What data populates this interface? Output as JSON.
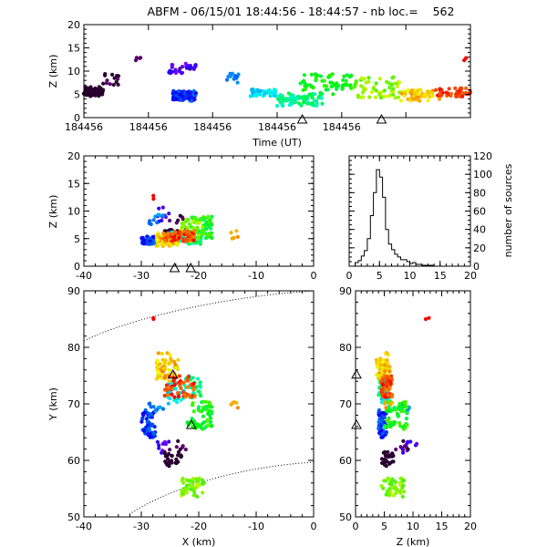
{
  "title": "ABFM - 06/15/01 18:44:56 - 18:44:57 - nb loc.=    562",
  "chart_data": [
    {
      "id": "time-height",
      "type": "scatter",
      "xlabel": "Time (UT)",
      "ylabel": "Z (km)",
      "xlim": [
        0,
        1
      ],
      "ylim": [
        0,
        20
      ],
      "yticks": [
        0,
        5,
        10,
        15,
        20
      ],
      "xtick_positions": [
        0,
        0.167,
        0.333,
        0.5,
        0.667,
        0.833,
        1.0
      ],
      "xtick_labels": [
        "184456",
        "184456",
        "184456",
        "184456",
        "184456",
        "",
        ""
      ],
      "stations_x": [
        0.565,
        0.77
      ],
      "color_scale": "time order, purple to red",
      "clusters": [
        {
          "t": [
            0.0,
            0.05
          ],
          "z": [
            4.6,
            6.6
          ],
          "n": 70,
          "ord": [
            0.0,
            0.05
          ]
        },
        {
          "t": [
            0.04,
            0.09
          ],
          "z": [
            7.0,
            9.5
          ],
          "n": 14,
          "ord": [
            0.04,
            0.09
          ]
        },
        {
          "t": [
            0.13,
            0.15
          ],
          "z": [
            12.2,
            13.0
          ],
          "n": 4,
          "ord": [
            0.14,
            0.15
          ]
        },
        {
          "t": [
            0.22,
            0.29
          ],
          "z": [
            9.5,
            11.8
          ],
          "n": 30,
          "ord": [
            0.15,
            0.25
          ]
        },
        {
          "t": [
            0.23,
            0.29
          ],
          "z": [
            3.6,
            5.8
          ],
          "n": 75,
          "ord": [
            0.24,
            0.36
          ]
        },
        {
          "t": [
            0.37,
            0.4
          ],
          "z": [
            7.5,
            9.5
          ],
          "n": 12,
          "ord": [
            0.33,
            0.38
          ]
        },
        {
          "t": [
            0.43,
            0.5
          ],
          "z": [
            4.6,
            6.2
          ],
          "n": 45,
          "ord": [
            0.4,
            0.48
          ]
        },
        {
          "t": [
            0.5,
            0.62
          ],
          "z": [
            2.5,
            5.2
          ],
          "n": 70,
          "ord": [
            0.47,
            0.6
          ]
        },
        {
          "t": [
            0.56,
            0.7
          ],
          "z": [
            5.0,
            9.5
          ],
          "n": 60,
          "ord": [
            0.58,
            0.68
          ]
        },
        {
          "t": [
            0.7,
            0.82
          ],
          "z": [
            4.2,
            8.8
          ],
          "n": 60,
          "ord": [
            0.68,
            0.8
          ]
        },
        {
          "t": [
            0.82,
            0.92
          ],
          "z": [
            3.6,
            6.0
          ],
          "n": 55,
          "ord": [
            0.8,
            0.9
          ]
        },
        {
          "t": [
            0.91,
            1.0
          ],
          "z": [
            4.5,
            6.4
          ],
          "n": 45,
          "ord": [
            0.92,
            1.0
          ]
        },
        {
          "t": [
            0.97,
            0.99
          ],
          "z": [
            12.2,
            13.0
          ],
          "n": 2,
          "ord": [
            1.0,
            1.0
          ]
        }
      ]
    },
    {
      "id": "x-height",
      "type": "scatter",
      "xlabel": "",
      "ylabel": "Z (km)",
      "xlim": [
        -40,
        0
      ],
      "ylim": [
        0,
        20
      ],
      "xticks": [
        -40,
        -30,
        -20,
        -10,
        0
      ],
      "yticks": [
        0,
        5,
        10,
        15,
        20
      ],
      "stations_x": [
        -24.2,
        -21.4
      ]
    },
    {
      "id": "height-histogram",
      "type": "bar",
      "xlabel": "",
      "ylabel": "number of sources",
      "xlim": [
        0,
        20
      ],
      "ylim": [
        0,
        120
      ],
      "xticks": [
        0,
        5,
        10,
        15,
        20
      ],
      "yticks": [
        0,
        20,
        40,
        60,
        80,
        100,
        120
      ],
      "bin_edges": [
        1.0,
        1.5,
        2.0,
        2.5,
        3.0,
        3.5,
        4.0,
        4.5,
        5.0,
        5.5,
        6.0,
        6.5,
        7.0,
        7.5,
        8.0,
        8.5,
        9.0,
        9.5,
        10.0,
        10.5,
        11.0,
        11.5,
        12.0,
        12.5,
        13.0,
        13.5,
        14.0
      ],
      "values": [
        4,
        6,
        11,
        17,
        30,
        55,
        80,
        105,
        97,
        75,
        40,
        24,
        18,
        13,
        10,
        7,
        7,
        5,
        3,
        4,
        2,
        2,
        1,
        1,
        1,
        1
      ]
    },
    {
      "id": "plan-view",
      "type": "scatter",
      "xlabel": "X (km)",
      "ylabel": "Y (km)",
      "xlim": [
        -40,
        0
      ],
      "ylim": [
        50,
        90
      ],
      "xticks": [
        -40,
        -30,
        -20,
        -10,
        0
      ],
      "yticks": [
        50,
        60,
        70,
        80,
        90
      ],
      "stations": [
        [
          -24.5,
          75.2
        ],
        [
          -21.3,
          66.3
        ]
      ],
      "clusters": [
        {
          "x": [
            -30,
            -27.5
          ],
          "y": [
            64,
            69
          ],
          "z": [
            4.0,
            5.5
          ],
          "n": 55,
          "ord": [
            0.24,
            0.36
          ]
        },
        {
          "x": [
            -27.5,
            -25
          ],
          "y": [
            61,
            63.5
          ],
          "z": [
            8,
            11
          ],
          "n": 10,
          "ord": [
            0.15,
            0.24
          ]
        },
        {
          "x": [
            -26.0,
            -23.0
          ],
          "y": [
            59,
            61.5
          ],
          "z": [
            4.6,
            6.6
          ],
          "n": 30,
          "ord": [
            0.0,
            0.06
          ]
        },
        {
          "x": [
            -24.0,
            -22.0
          ],
          "y": [
            61.5,
            63.5
          ],
          "z": [
            7.0,
            9.5
          ],
          "n": 6,
          "ord": [
            0.06,
            0.12
          ]
        },
        {
          "x": [
            -29,
            -26
          ],
          "y": [
            68.5,
            71
          ],
          "z": [
            7.5,
            9.5
          ],
          "n": 10,
          "ord": [
            0.33,
            0.4
          ]
        },
        {
          "x": [
            -25.5,
            -22.5
          ],
          "y": [
            70,
            74
          ],
          "z": [
            4.5,
            6.2
          ],
          "n": 30,
          "ord": [
            0.4,
            0.5
          ]
        },
        {
          "x": [
            -22.5,
            -19.5
          ],
          "y": [
            71,
            75
          ],
          "z": [
            4.0,
            5.2
          ],
          "n": 30,
          "ord": [
            0.48,
            0.6
          ]
        },
        {
          "x": [
            -22.0,
            -17.5
          ],
          "y": [
            65.5,
            70.5
          ],
          "z": [
            5.0,
            9.0
          ],
          "n": 60,
          "ord": [
            0.56,
            0.7
          ]
        },
        {
          "x": [
            -23.0,
            -19.0
          ],
          "y": [
            53.5,
            57.0
          ],
          "z": [
            4.5,
            8.5
          ],
          "n": 45,
          "ord": [
            0.68,
            0.78
          ]
        },
        {
          "x": [
            -27.5,
            -23.5
          ],
          "y": [
            74,
            79
          ],
          "z": [
            3.6,
            6.0
          ],
          "n": 60,
          "ord": [
            0.8,
            0.9
          ]
        },
        {
          "x": [
            -26.0,
            -20.5
          ],
          "y": [
            71,
            75
          ],
          "z": [
            4.5,
            6.4
          ],
          "n": 55,
          "ord": [
            0.9,
            1.0
          ]
        },
        {
          "x": [
            -14.5,
            -12.5
          ],
          "y": [
            69,
            70.5
          ],
          "z": [
            5.0,
            6.5
          ],
          "n": 5,
          "ord": [
            0.86,
            0.92
          ]
        },
        {
          "x": [
            -28.5,
            -27.5
          ],
          "y": [
            84.5,
            85.5
          ],
          "z": [
            12.2,
            13.0
          ],
          "n": 2,
          "ord": [
            1.0,
            1.0
          ]
        }
      ]
    },
    {
      "id": "z-y-view",
      "type": "scatter",
      "xlabel": "Z (km)",
      "ylabel": "",
      "xlim": [
        0,
        20
      ],
      "ylim": [
        50,
        90
      ],
      "xticks": [
        0,
        5,
        10,
        15,
        20
      ],
      "yticks": [
        50,
        60,
        70,
        80,
        90
      ],
      "stations": [
        [
          0.0,
          75.2
        ],
        [
          0.0,
          66.3
        ]
      ]
    }
  ]
}
